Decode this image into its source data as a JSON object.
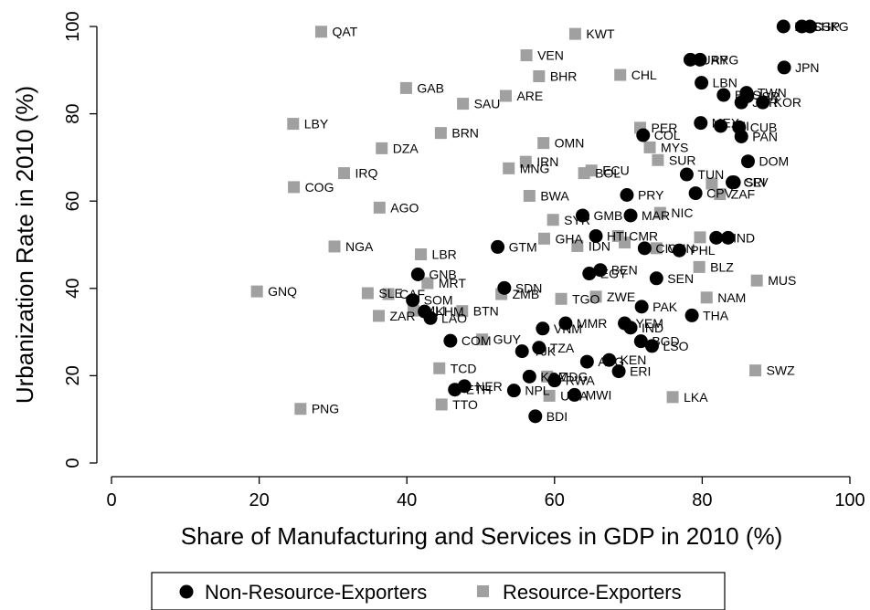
{
  "chart_data": {
    "type": "scatter",
    "xlabel": "Share of Manufacturing and Services in GDP in 2010 (%)",
    "ylabel": "Urbanization Rate in 2010 (%)",
    "xlim": [
      0,
      100
    ],
    "ylim": [
      0,
      100
    ],
    "xticks": [
      "0",
      "20",
      "40",
      "60",
      "80",
      "100"
    ],
    "yticks": [
      "0",
      "20",
      "40",
      "60",
      "80",
      "100"
    ],
    "grid": false,
    "legend_position": "bottom",
    "colors": {
      "non_resource": "#000000",
      "resource": "#a0a0a0"
    },
    "series": [
      {
        "name": "Non-Resource-Exporters",
        "marker": "circle",
        "points": [
          {
            "label": "SGP",
            "x": 93.5,
            "y": 100
          },
          {
            "label": "HKG",
            "x": 94.6,
            "y": 100
          },
          {
            "label": "MAC",
            "x": 91,
            "y": 100
          },
          {
            "label": "JPN",
            "x": 91.1,
            "y": 90.6
          },
          {
            "label": "URY",
            "x": 78.4,
            "y": 92.4
          },
          {
            "label": "ARG",
            "x": 79.7,
            "y": 92.4
          },
          {
            "label": "LBN",
            "x": 79.9,
            "y": 87.1
          },
          {
            "label": "TWN",
            "x": 86,
            "y": 84.8
          },
          {
            "label": "ISR",
            "x": 86.1,
            "y": 84
          },
          {
            "label": "BHS",
            "x": 82.9,
            "y": 84.3
          },
          {
            "label": "JOR",
            "x": 85.3,
            "y": 82.6
          },
          {
            "label": "KOR",
            "x": 88.2,
            "y": 82.6
          },
          {
            "label": "MEX",
            "x": 79.8,
            "y": 77.9
          },
          {
            "label": "FJI",
            "x": 82.5,
            "y": 77.2
          },
          {
            "label": "CUB",
            "x": 85,
            "y": 76.9
          },
          {
            "label": "PAN",
            "x": 85.3,
            "y": 74.8
          },
          {
            "label": "COL",
            "x": 72,
            "y": 75.1
          },
          {
            "label": "DOM",
            "x": 86.2,
            "y": 69.1
          },
          {
            "label": "TUN",
            "x": 77.9,
            "y": 66.1
          },
          {
            "label": "SLV",
            "x": 84.3,
            "y": 64.3
          },
          {
            "label": "CRI",
            "x": 84.1,
            "y": 64.3
          },
          {
            "label": "CPV",
            "x": 79.1,
            "y": 61.8
          },
          {
            "label": "PRY",
            "x": 69.8,
            "y": 61.4
          },
          {
            "label": "GMB",
            "x": 63.8,
            "y": 56.7
          },
          {
            "label": "MAR",
            "x": 70.3,
            "y": 56.7
          },
          {
            "label": "HTI",
            "x": 65.6,
            "y": 52
          },
          {
            "label": "HND",
            "x": 81.9,
            "y": 51.6
          },
          {
            "label": "SLE-B",
            "x": 83.5,
            "y": 51.6
          },
          {
            "label": "CIV",
            "x": 72.2,
            "y": 49.2
          },
          {
            "label": "PHL",
            "x": 76.9,
            "y": 48.7
          },
          {
            "label": "GTM",
            "x": 52.3,
            "y": 49.5
          },
          {
            "label": "EGY",
            "x": 64.7,
            "y": 43.4
          },
          {
            "label": "BEN",
            "x": 66.2,
            "y": 44.2
          },
          {
            "label": "SEN",
            "x": 73.8,
            "y": 42.3
          },
          {
            "label": "GNB",
            "x": 41.5,
            "y": 43.2
          },
          {
            "label": "SDN",
            "x": 53.2,
            "y": 40.1
          },
          {
            "label": "SOM",
            "x": 40.8,
            "y": 37.3
          },
          {
            "label": "KHM",
            "x": 42.4,
            "y": 34.7
          },
          {
            "label": "LAO",
            "x": 43.2,
            "y": 33.2
          },
          {
            "label": "PAK",
            "x": 71.8,
            "y": 35.8
          },
          {
            "label": "THA",
            "x": 78.6,
            "y": 33.8
          },
          {
            "label": "MMR",
            "x": 61.5,
            "y": 32
          },
          {
            "label": "VNM",
            "x": 58.4,
            "y": 30.8
          },
          {
            "label": "YEM",
            "x": 69.5,
            "y": 32
          },
          {
            "label": "IND",
            "x": 70.3,
            "y": 31
          },
          {
            "label": "BGD",
            "x": 71.7,
            "y": 27.9
          },
          {
            "label": "LSO",
            "x": 73.2,
            "y": 26.8
          },
          {
            "label": "COM",
            "x": 45.9,
            "y": 28
          },
          {
            "label": "TZA",
            "x": 57.9,
            "y": 26.4
          },
          {
            "label": "TJK",
            "x": 55.6,
            "y": 25.6
          },
          {
            "label": "AFG",
            "x": 64.4,
            "y": 23.2
          },
          {
            "label": "KEN",
            "x": 67.4,
            "y": 23.6
          },
          {
            "label": "ERI",
            "x": 68.7,
            "y": 21
          },
          {
            "label": "KGZ",
            "x": 56.6,
            "y": 19.8
          },
          {
            "label": "NPL",
            "x": 54.5,
            "y": 16.6
          },
          {
            "label": "RWA",
            "x": 60,
            "y": 18.9
          },
          {
            "label": "NER",
            "x": 47.8,
            "y": 17.6
          },
          {
            "label": "ETH",
            "x": 46.5,
            "y": 16.8
          },
          {
            "label": "MWI",
            "x": 62.7,
            "y": 15.6
          },
          {
            "label": "BDI",
            "x": 57.4,
            "y": 10.7
          }
        ]
      },
      {
        "name": "Resource-Exporters",
        "marker": "square",
        "points": [
          {
            "label": "QAT",
            "x": 28.4,
            "y": 98.8
          },
          {
            "label": "KWT",
            "x": 62.8,
            "y": 98.3
          },
          {
            "label": "VEN",
            "x": 56.2,
            "y": 93.4
          },
          {
            "label": "BHR",
            "x": 57.9,
            "y": 88.6
          },
          {
            "label": "CHL",
            "x": 68.9,
            "y": 88.9
          },
          {
            "label": "GAB",
            "x": 39.9,
            "y": 85.9
          },
          {
            "label": "ARE",
            "x": 53.4,
            "y": 84.1
          },
          {
            "label": "SAU",
            "x": 47.6,
            "y": 82.3
          },
          {
            "label": "LBY",
            "x": 24.6,
            "y": 77.7
          },
          {
            "label": "PER",
            "x": 71.6,
            "y": 76.8
          },
          {
            "label": "BRN",
            "x": 44.6,
            "y": 75.6
          },
          {
            "label": "OMN",
            "x": 58.5,
            "y": 73.3
          },
          {
            "label": "MYS",
            "x": 72.9,
            "y": 72.3
          },
          {
            "label": "DZA",
            "x": 36.6,
            "y": 72.1
          },
          {
            "label": "SUR",
            "x": 74,
            "y": 69.4
          },
          {
            "label": "IRN",
            "x": 56.1,
            "y": 69
          },
          {
            "label": "MNG",
            "x": 53.8,
            "y": 67.5
          },
          {
            "label": "ECU",
            "x": 65,
            "y": 67
          },
          {
            "label": "BOL",
            "x": 64,
            "y": 66.4
          },
          {
            "label": "IRQ",
            "x": 31.5,
            "y": 66.4
          },
          {
            "label": "COG",
            "x": 24.7,
            "y": 63.2
          },
          {
            "label": "GUY-B",
            "x": 81.3,
            "y": 64
          },
          {
            "label": "ZAF",
            "x": 82.4,
            "y": 61.6
          },
          {
            "label": "BWA",
            "x": 56.6,
            "y": 61.2
          },
          {
            "label": "AGO",
            "x": 36.3,
            "y": 58.5
          },
          {
            "label": "NIC",
            "x": 74.3,
            "y": 57.3
          },
          {
            "label": "SYR",
            "x": 59.8,
            "y": 55.7
          },
          {
            "label": "NGA",
            "x": 30.2,
            "y": 49.6
          },
          {
            "label": "GHA",
            "x": 58.6,
            "y": 51.4
          },
          {
            "label": "IDN",
            "x": 63.1,
            "y": 49.7
          },
          {
            "label": "CMR",
            "x": 68.6,
            "y": 52
          },
          {
            "label": "CIV-B",
            "x": 69.5,
            "y": 50.5
          },
          {
            "label": "CHN",
            "x": 73.8,
            "y": 49.2
          },
          {
            "label": "IND-B",
            "x": 79.7,
            "y": 51.7
          },
          {
            "label": "LBR",
            "x": 41.9,
            "y": 47.8
          },
          {
            "label": "BLZ",
            "x": 79.6,
            "y": 44.9
          },
          {
            "label": "MRT",
            "x": 42.8,
            "y": 41.2
          },
          {
            "label": "MUS",
            "x": 87.4,
            "y": 41.8
          },
          {
            "label": "GNQ",
            "x": 19.7,
            "y": 39.3
          },
          {
            "label": "SLE",
            "x": 34.7,
            "y": 38.9
          },
          {
            "label": "CAF",
            "x": 37.5,
            "y": 38.7
          },
          {
            "label": "ZMB",
            "x": 52.8,
            "y": 38.7
          },
          {
            "label": "TGO",
            "x": 60.9,
            "y": 37.6
          },
          {
            "label": "ZWE",
            "x": 65.6,
            "y": 38.1
          },
          {
            "label": "NAM",
            "x": 80.6,
            "y": 37.9
          },
          {
            "label": "MLI",
            "x": 40.9,
            "y": 34.9
          },
          {
            "label": "BTN",
            "x": 47.5,
            "y": 34.8
          },
          {
            "label": "ZAR",
            "x": 36.2,
            "y": 33.7
          },
          {
            "label": "GUY",
            "x": 50.2,
            "y": 28.3
          },
          {
            "label": "TCD",
            "x": 44.4,
            "y": 21.7
          },
          {
            "label": "SWZ",
            "x": 87.2,
            "y": 21.2
          },
          {
            "label": "MDG",
            "x": 59,
            "y": 19.8
          },
          {
            "label": "UGA",
            "x": 59.3,
            "y": 15.4
          },
          {
            "label": "LKA",
            "x": 76,
            "y": 15.1
          },
          {
            "label": "TTO",
            "x": 44.7,
            "y": 13.4
          },
          {
            "label": "PNG",
            "x": 25.6,
            "y": 12.4
          }
        ]
      }
    ],
    "labels": [
      "SGP",
      "HKG",
      "MAC",
      "JPN",
      "URY",
      "ARG",
      "LBN",
      "TWN",
      "ISR",
      "BHS",
      "JOR",
      "KOR",
      "MEX",
      "FJI",
      "CUB",
      "PAN",
      "COL",
      "DOM",
      "TUN",
      "SLV",
      "CRI",
      "CPV",
      "ZAF",
      "PRY",
      "GMB",
      "MAR",
      "HTI",
      "HND",
      "SLE",
      "CIV",
      "PHL",
      "GTM",
      "EGY",
      "BEN",
      "SEN",
      "GNB",
      "SDN",
      "SOM",
      "MLI",
      "KHM",
      "LAO",
      "PAK",
      "THA",
      "MMR",
      "VNM",
      "YEM",
      "IND",
      "BGD",
      "LSO",
      "COM",
      "TZA",
      "TJK",
      "AFG",
      "KEN",
      "ERI",
      "KGZ",
      "NPL",
      "RWA",
      "NER",
      "ETH",
      "MWI",
      "BDI",
      "QAT",
      "KWT",
      "VEN",
      "BHR",
      "CHL",
      "GAB",
      "ARE",
      "SAU",
      "LBY",
      "PER",
      "BRN",
      "OMN",
      "MYS",
      "DZA",
      "SUR",
      "IRN",
      "MNG",
      "ECU",
      "BOL",
      "IRQ",
      "COG",
      "BWA",
      "AGO",
      "NIC",
      "SYR",
      "NGA",
      "GHA",
      "IDN",
      "CMR",
      "CHN",
      "LBR",
      "BLZ",
      "MRT",
      "MUS",
      "GNQ",
      "CAF",
      "ZMB",
      "TGO",
      "ZWE",
      "NAM",
      "BTN",
      "ZAR",
      "GUY",
      "TCD",
      "SWZ",
      "MDG",
      "UGA",
      "LKA",
      "TTO",
      "PNG"
    ],
    "legend": {
      "non_resource_label": "Non-Resource-Exporters",
      "resource_label": "Resource-Exporters"
    }
  }
}
